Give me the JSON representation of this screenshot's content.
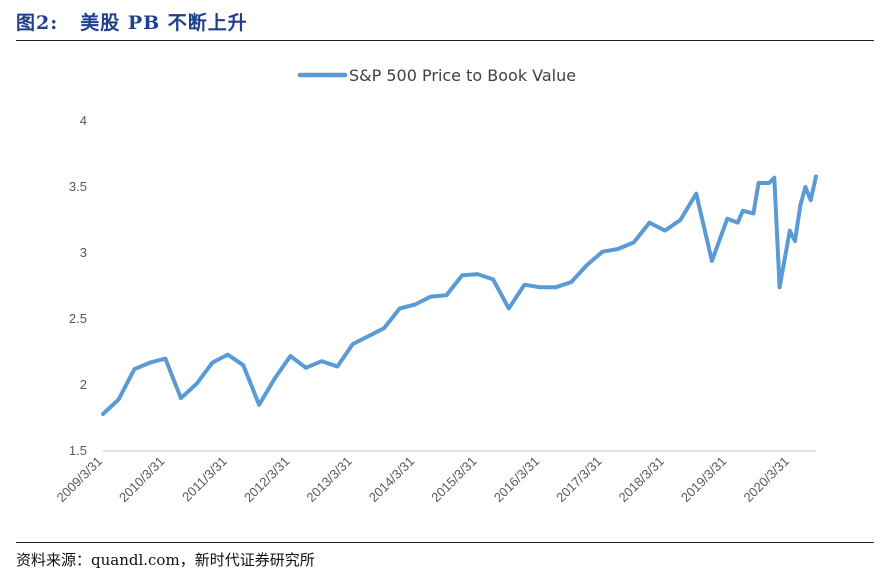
{
  "figure": {
    "label": "图2:",
    "title": "美股 PB 不断上升"
  },
  "source": "资料来源：quandl.com，新时代证券研究所",
  "colors": {
    "series": "#5b9bd5",
    "axis": "#bfbfbf",
    "title": "#1f3f8c"
  },
  "chart_data": {
    "type": "line",
    "title": "",
    "xlabel": "",
    "ylabel": "",
    "ylim": [
      1.5,
      4
    ],
    "yticks": [
      "1.5",
      "2",
      "2.5",
      "3",
      "3.5",
      "4"
    ],
    "xticks": [
      "2009/3/31",
      "2010/3/31",
      "2011/3/31",
      "2012/3/31",
      "2013/3/31",
      "2014/3/31",
      "2015/3/31",
      "2016/3/31",
      "2017/3/31",
      "2018/3/31",
      "2019/3/31",
      "2020/3/31"
    ],
    "grid": false,
    "legend_position": "top-center",
    "series": [
      {
        "name": "S&P 500 Price to Book Value",
        "x": [
          "2009/3/31",
          "2009/6/30",
          "2009/9/30",
          "2009/12/31",
          "2010/3/31",
          "2010/6/30",
          "2010/9/30",
          "2010/12/31",
          "2011/3/31",
          "2011/6/30",
          "2011/9/30",
          "2011/12/31",
          "2012/3/31",
          "2012/6/30",
          "2012/9/30",
          "2012/12/31",
          "2013/3/31",
          "2013/6/30",
          "2013/9/30",
          "2013/12/31",
          "2014/3/31",
          "2014/6/30",
          "2014/9/30",
          "2014/12/31",
          "2015/3/31",
          "2015/6/30",
          "2015/9/30",
          "2015/12/31",
          "2016/3/31",
          "2016/6/30",
          "2016/9/30",
          "2016/12/31",
          "2017/3/31",
          "2017/6/30",
          "2017/9/30",
          "2017/12/31",
          "2018/3/31",
          "2018/6/30",
          "2018/9/30",
          "2018/12/31",
          "2019/3/31",
          "2019/5/31",
          "2019/6/30",
          "2019/8/31",
          "2019/9/30",
          "2019/11/30",
          "2019/12/31",
          "2020/1/31",
          "2020/3/31",
          "2020/4/30",
          "2020/5/31",
          "2020/6/30",
          "2020/7/31",
          "2020/8/31"
        ],
        "values": [
          1.78,
          1.89,
          2.12,
          2.17,
          2.2,
          1.9,
          2.01,
          2.17,
          2.23,
          2.15,
          1.85,
          2.05,
          2.22,
          2.13,
          2.18,
          2.14,
          2.31,
          2.37,
          2.43,
          2.58,
          2.61,
          2.67,
          2.68,
          2.83,
          2.84,
          2.8,
          2.58,
          2.76,
          2.74,
          2.74,
          2.78,
          2.91,
          3.01,
          3.03,
          3.08,
          3.23,
          3.17,
          3.25,
          3.45,
          2.94,
          3.26,
          3.23,
          3.32,
          3.3,
          3.53,
          3.53,
          3.57,
          2.74,
          3.17,
          3.09,
          3.36,
          3.5,
          3.4,
          3.58
        ]
      }
    ]
  }
}
